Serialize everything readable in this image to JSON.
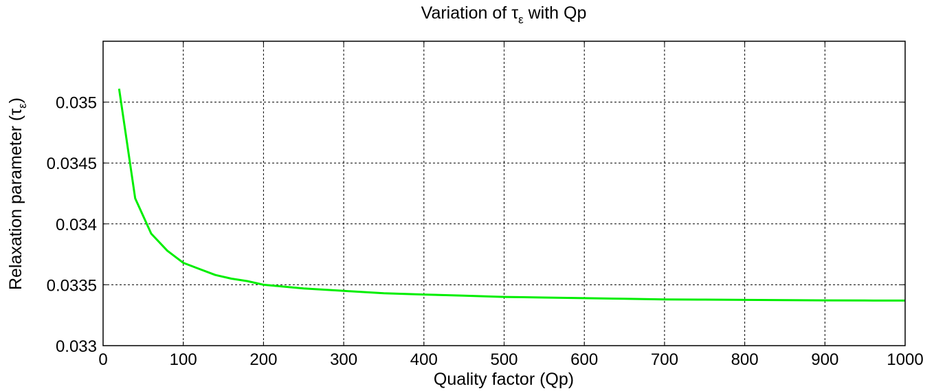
{
  "chart_data": {
    "type": "line",
    "title": {
      "prefix": "Variation of ",
      "symbol": "τ",
      "subscript": "ε",
      "suffix": " with Qp"
    },
    "xlabel": "Quality factor (Qp)",
    "ylabel": {
      "text": "Relaxation parameter (",
      "symbol": "τ",
      "subscript": "ε",
      "close": ")"
    },
    "xlim": [
      0,
      1000
    ],
    "ylim": [
      0.033,
      0.0355
    ],
    "xticks": [
      0,
      100,
      200,
      300,
      400,
      500,
      600,
      700,
      800,
      900,
      1000
    ],
    "xtick_labels": [
      "0",
      "100",
      "200",
      "300",
      "400",
      "500",
      "600",
      "700",
      "800",
      "900",
      "1000"
    ],
    "yticks": [
      0.033,
      0.0335,
      0.034,
      0.0345,
      0.035
    ],
    "ytick_labels": [
      "0.033",
      "0.0335",
      "0.034",
      "0.0345",
      "0.035"
    ],
    "grid": true,
    "series": [
      {
        "color": "#00ee00",
        "x": [
          20,
          40,
          60,
          80,
          100,
          120,
          140,
          160,
          180,
          200,
          250,
          300,
          350,
          400,
          450,
          500,
          550,
          600,
          650,
          700,
          750,
          800,
          850,
          900,
          950,
          1000
        ],
        "y": [
          0.03511,
          0.03421,
          0.03392,
          0.03378,
          0.03368,
          0.03363,
          0.03358,
          0.03355,
          0.03353,
          0.0335,
          0.03347,
          0.03345,
          0.03343,
          0.03342,
          0.03341,
          0.0334,
          0.033395,
          0.03339,
          0.033385,
          0.03338,
          0.033378,
          0.033376,
          0.033374,
          0.033372,
          0.033371,
          0.03337
        ]
      }
    ]
  }
}
